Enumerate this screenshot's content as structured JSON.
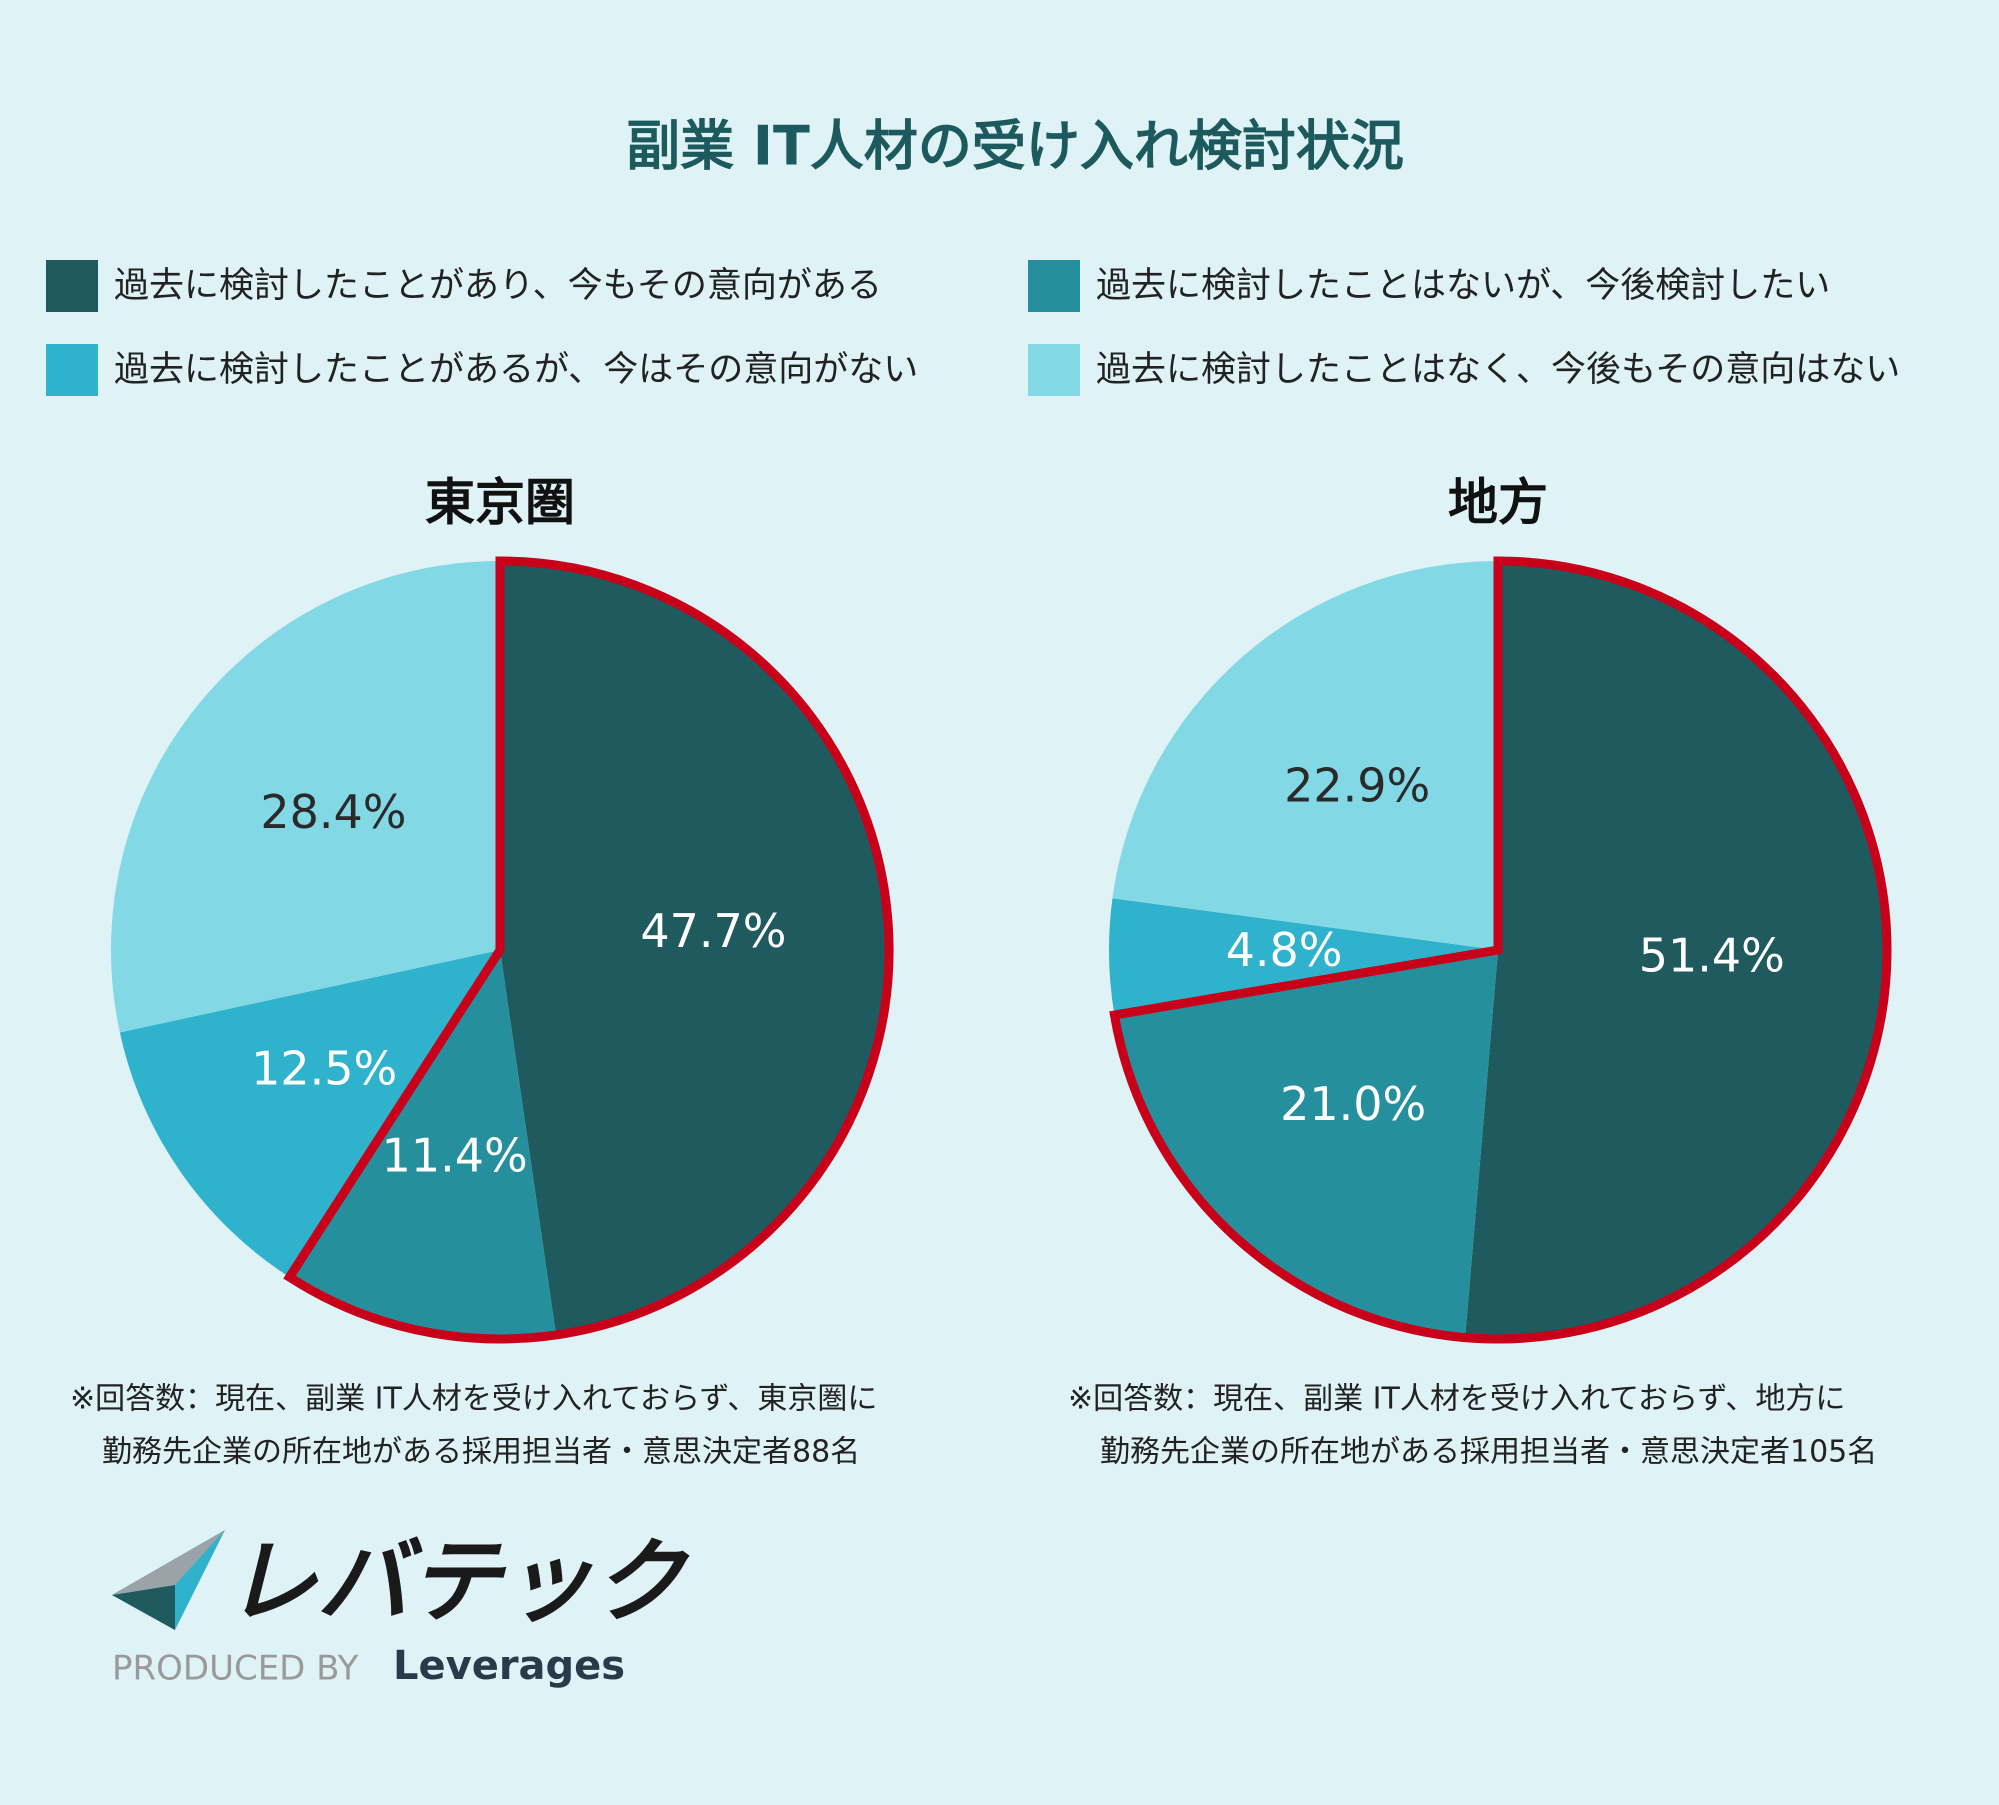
{
  "title": "副業 IT人材の受け入れ検討状況",
  "legend": {
    "labels": [
      "過去に検討したことがあり、今もその意向がある",
      "過去に検討したことはないが、今後検討したい",
      "過去に検討したことがあるが、今はその意向がない",
      "過去に検討したことはなく、今後もその意向はない"
    ],
    "colors": [
      "#1e5a5e",
      "#268f9e",
      "#2fb2cc",
      "#82d8e5"
    ]
  },
  "chart_data": [
    {
      "type": "pie",
      "title": "東京圏",
      "values": [
        47.7,
        11.4,
        12.5,
        28.4
      ],
      "value_labels": [
        "47.7%",
        "11.4%",
        "12.5%",
        "28.4%"
      ],
      "note": [
        "※回答数：現在、副業 IT人材を受け入れておらず、東京圏に",
        "勤務先企業の所在地がある採用担当者・意思決定者88名"
      ]
    },
    {
      "type": "pie",
      "title": "地方",
      "values": [
        51.4,
        21.0,
        4.8,
        22.9
      ],
      "value_labels": [
        "51.4%",
        "21.0%",
        "4.8%",
        "22.9%"
      ],
      "note": [
        "※回答数：現在、副業 IT人材を受け入れておらず、地方に",
        "勤務先企業の所在地がある採用担当者・意思決定者105名"
      ]
    }
  ],
  "logo": {
    "name": "レバテック",
    "tagline": "PRODUCED BY",
    "brand": "Leverages"
  }
}
